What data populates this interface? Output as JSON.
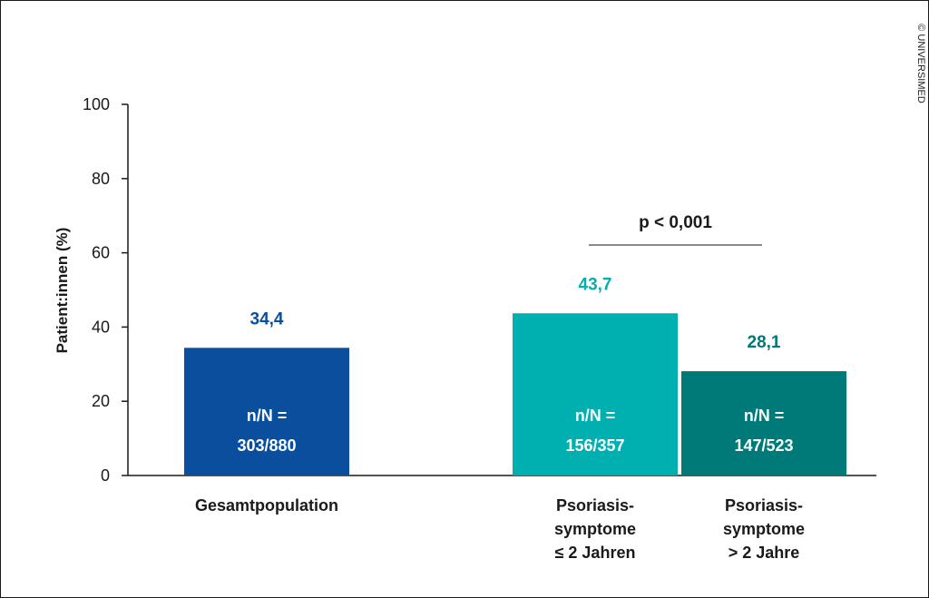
{
  "copyright": "© UNIVERSIMED",
  "chart_data": {
    "type": "bar",
    "ylabel": "Patient:innen (%)",
    "ylim": [
      0,
      100
    ],
    "yticks": [
      "0",
      "20",
      "40",
      "60",
      "80",
      "100"
    ],
    "grid": false,
    "bars": [
      {
        "category_lines": [
          "Gesamtpopulation"
        ],
        "value": 34.4,
        "value_label": "34,4",
        "inner_lines": [
          "n/N =",
          "303/880"
        ],
        "color": "#0a4f9e",
        "label_color": "#0a4f9e"
      },
      {
        "category_lines": [
          "Psoriasis-",
          "symptome",
          "≤ 2 Jahren"
        ],
        "value": 43.7,
        "value_label": "43,7",
        "inner_lines": [
          "n/N =",
          "156/357"
        ],
        "color": "#00b0b0",
        "label_color": "#00b0b0"
      },
      {
        "category_lines": [
          "Psoriasis-",
          "symptome",
          "> 2 Jahre"
        ],
        "value": 28.1,
        "value_label": "28,1",
        "inner_lines": [
          "n/N =",
          "147/523"
        ],
        "color": "#007a78",
        "label_color": "#007a78"
      }
    ],
    "annotation": {
      "text": "p < 0,001",
      "between": [
        1,
        2
      ]
    }
  }
}
